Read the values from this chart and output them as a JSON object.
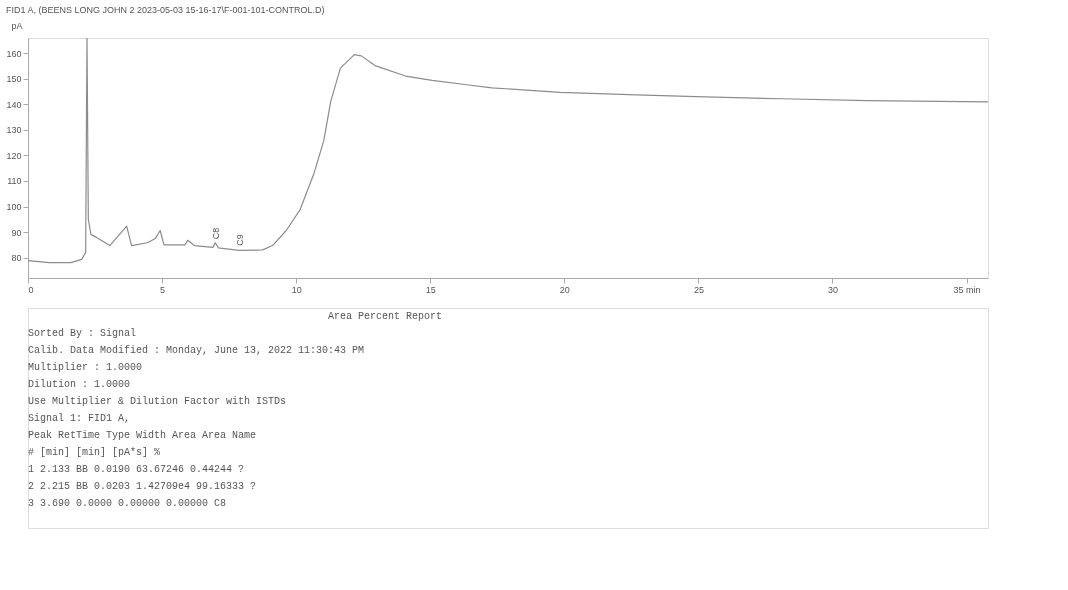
{
  "chart_data": {
    "type": "line",
    "title": "FID1 A, (BEENS LONG JOHN 2 2023-05-03 15-16-17\\F-001-101-CONTROL.D)",
    "ylabel": "pA",
    "xlim": [
      0,
      35.8
    ],
    "ylim": [
      72,
      166
    ],
    "xticks": [
      0,
      5,
      10,
      15,
      20,
      25,
      30,
      {
        "value": 35,
        "label": "35 min"
      }
    ],
    "yticks": [
      80,
      90,
      100,
      110,
      120,
      130,
      140,
      150,
      160
    ],
    "grid": false,
    "marker": "none",
    "line_style": "solid",
    "series": [
      {
        "color": "#8c8c8c",
        "x": [
          0,
          0.8,
          1.6,
          2.0,
          2.15,
          2.2,
          2.25,
          2.35,
          2.54,
          3.05,
          3.68,
          3.86,
          4.45,
          4.75,
          4.93,
          5.07,
          5.85,
          5.96,
          6.2,
          6.9,
          6.98,
          7.1,
          7.87,
          8.75,
          9.12,
          9.63,
          10.15,
          10.66,
          11.03,
          11.29,
          11.65,
          12.17,
          12.43,
          12.94,
          14.08,
          15.07,
          16.36,
          17.3,
          19.85,
          22.4,
          24.9,
          28.1,
          31.3,
          35.8
        ],
        "values": [
          78.8,
          78,
          78,
          79.3,
          82,
          166,
          95,
          89,
          88,
          84.7,
          92.3,
          84.7,
          85.8,
          87.5,
          90.6,
          85,
          85,
          86.8,
          84.7,
          84,
          85.8,
          83.8,
          82.8,
          83,
          84.7,
          90.6,
          98.8,
          112.8,
          125.8,
          141.2,
          154.2,
          159.5,
          159,
          155.2,
          151.1,
          149.4,
          147.7,
          146.5,
          144.7,
          143.8,
          143,
          142.2,
          141.5,
          141
        ]
      }
    ],
    "annotations": [
      {
        "text": "C8",
        "x": 7.0,
        "y": 86
      },
      {
        "text": "C9",
        "x": 7.9,
        "y": 83.5
      },
      "Area Percent Report",
      "Sorted By : Signal",
      "Calib. Data Modified : Monday, June 13, 2022 11:30:43 PM",
      "Multiplier : 1.0000",
      "Dilution : 1.0000",
      "Use Multiplier & Dilution Factor with ISTDs",
      "Signal 1: FID1 A,",
      "Peak RetTime Type Width Area Area Name",
      "# [min] [min] [pA*s] %",
      "1 2.133 BB 0.0190 63.67246 0.44244 ?",
      "2 2.215 BB 0.0203 1.42709e4 99.16333 ?",
      "3 3.690 0.0000 0.00000 0.00000 C8"
    ]
  }
}
